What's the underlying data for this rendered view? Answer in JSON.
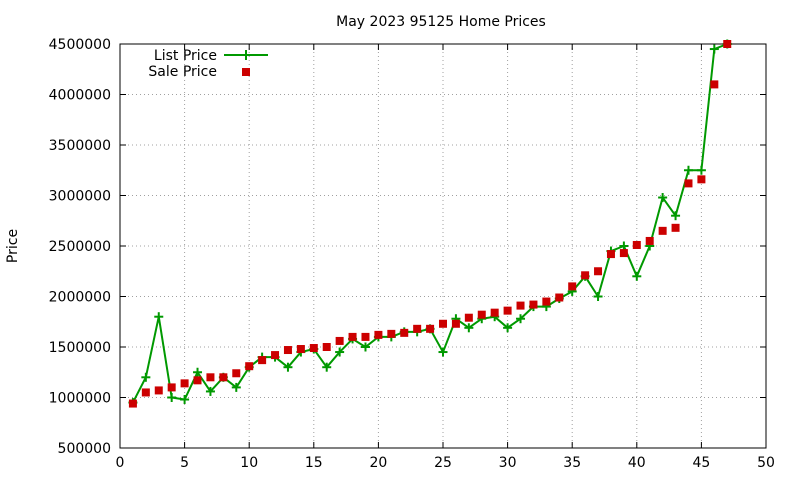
{
  "chart_data": {
    "type": "line",
    "title": "May 2023 95125 Home Prices",
    "xlabel": "",
    "ylabel": "Price",
    "xlim": [
      0,
      50
    ],
    "ylim": [
      500000,
      4500000
    ],
    "x_ticks": [
      0,
      5,
      10,
      15,
      20,
      25,
      30,
      35,
      40,
      45,
      50
    ],
    "y_ticks": [
      500000,
      1000000,
      1500000,
      2000000,
      2500000,
      3000000,
      3500000,
      4000000,
      4500000
    ],
    "grid": true,
    "legend_position": "top-left",
    "series": [
      {
        "name": "List Price",
        "style": "line-with-plus-markers",
        "color": "#009900",
        "x": [
          1,
          2,
          3,
          4,
          5,
          6,
          7,
          8,
          9,
          10,
          11,
          12,
          13,
          14,
          15,
          16,
          17,
          18,
          19,
          20,
          21,
          22,
          23,
          24,
          25,
          26,
          27,
          28,
          29,
          30,
          31,
          32,
          33,
          34,
          35,
          36,
          37,
          38,
          39,
          40,
          41,
          42,
          43,
          44,
          45,
          46,
          47
        ],
        "values": [
          950000,
          1200000,
          1800000,
          1000000,
          980000,
          1250000,
          1060000,
          1200000,
          1100000,
          1300000,
          1400000,
          1400000,
          1300000,
          1450000,
          1480000,
          1300000,
          1450000,
          1580000,
          1500000,
          1600000,
          1600000,
          1650000,
          1650000,
          1680000,
          1450000,
          1780000,
          1690000,
          1780000,
          1800000,
          1690000,
          1780000,
          1900000,
          1900000,
          1980000,
          2050000,
          2200000,
          2000000,
          2450000,
          2500000,
          2200000,
          2500000,
          2980000,
          2800000,
          3250000,
          3250000,
          4450000,
          4500000
        ]
      },
      {
        "name": "Sale Price",
        "style": "square-markers",
        "color": "#cc0000",
        "x": [
          1,
          2,
          3,
          4,
          5,
          6,
          7,
          8,
          9,
          10,
          11,
          12,
          13,
          14,
          15,
          16,
          17,
          18,
          19,
          20,
          21,
          22,
          23,
          24,
          25,
          26,
          27,
          28,
          29,
          30,
          31,
          32,
          33,
          34,
          35,
          36,
          37,
          38,
          39,
          40,
          41,
          42,
          43,
          44,
          45,
          46,
          47
        ],
        "values": [
          940000,
          1050000,
          1070000,
          1100000,
          1140000,
          1170000,
          1200000,
          1200000,
          1240000,
          1310000,
          1370000,
          1420000,
          1470000,
          1480000,
          1490000,
          1500000,
          1560000,
          1600000,
          1600000,
          1620000,
          1630000,
          1640000,
          1680000,
          1680000,
          1730000,
          1730000,
          1790000,
          1820000,
          1840000,
          1860000,
          1910000,
          1920000,
          1950000,
          1990000,
          2100000,
          2210000,
          2250000,
          2420000,
          2430000,
          2510000,
          2550000,
          2650000,
          2680000,
          3120000,
          3160000,
          4100000,
          4500000
        ]
      }
    ]
  }
}
